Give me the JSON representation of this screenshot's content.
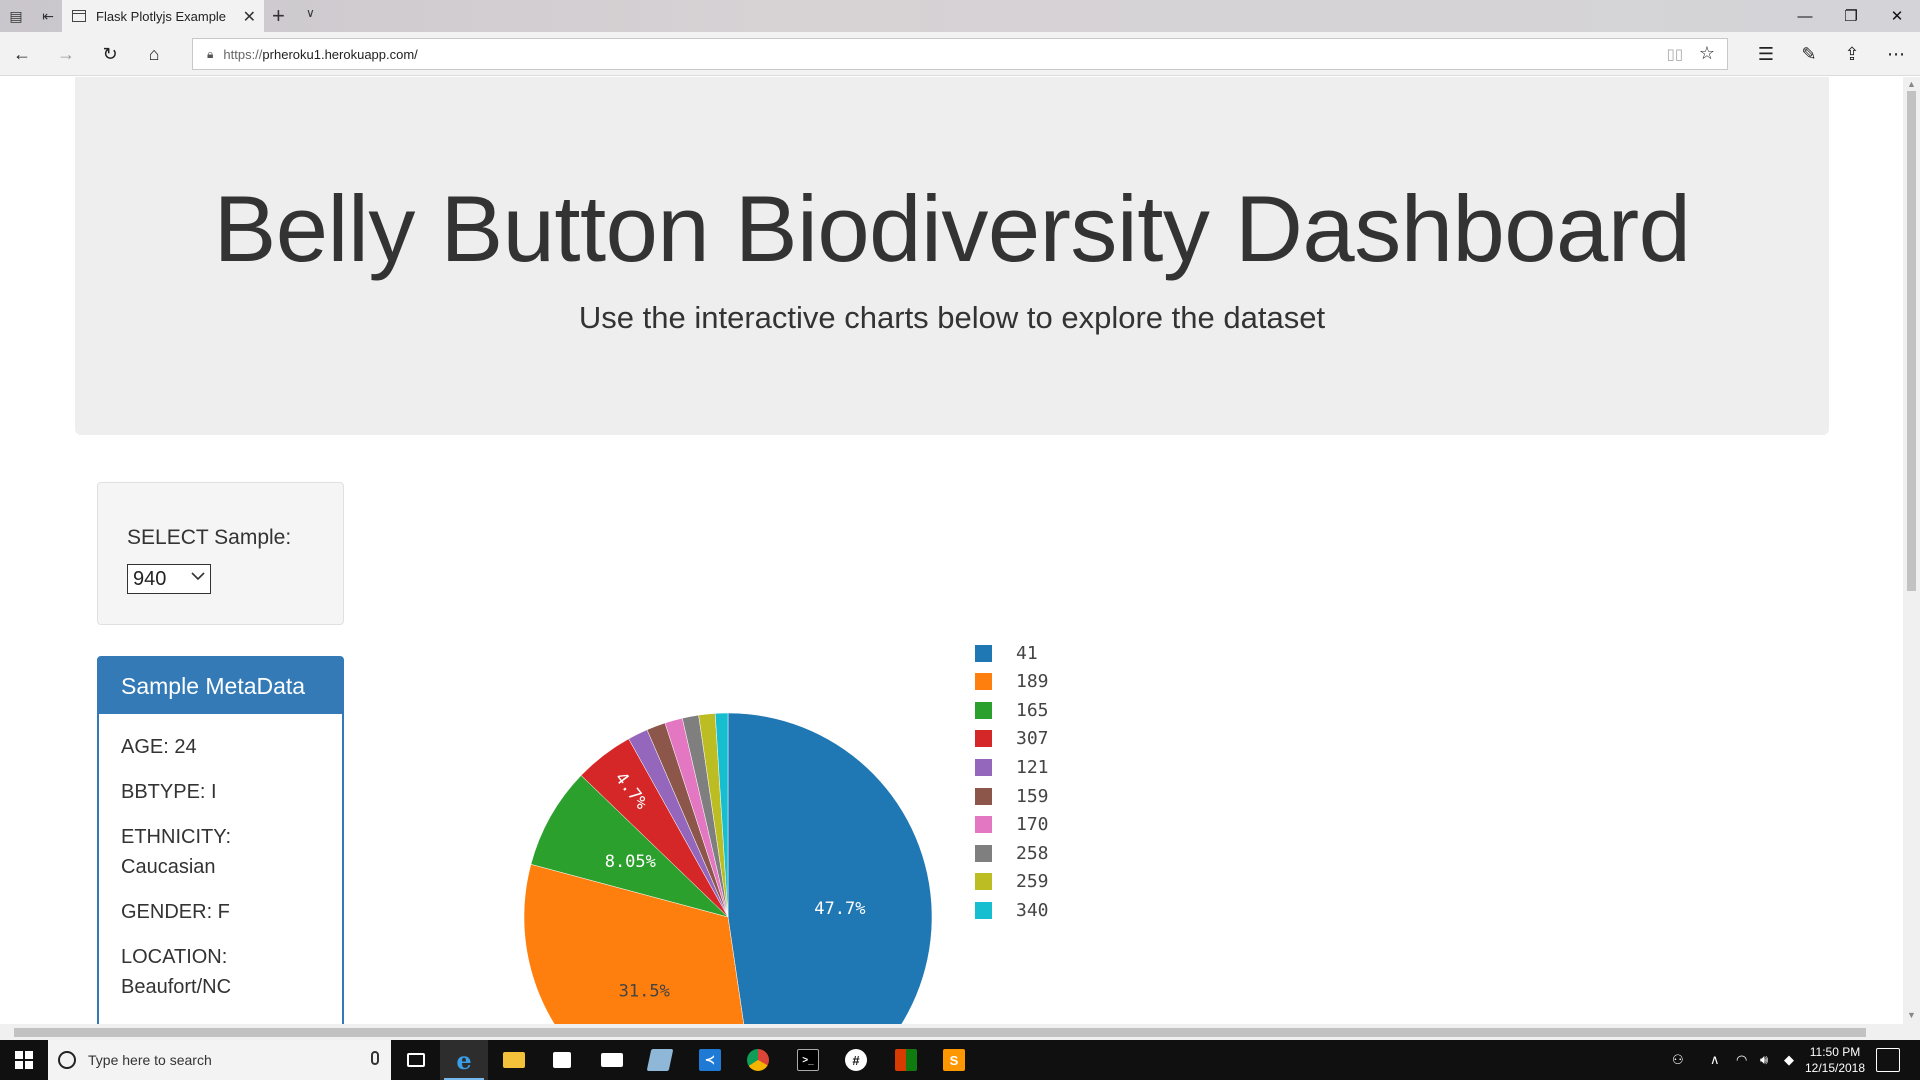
{
  "browser": {
    "tab_title": "Flask Plotlyjs Example",
    "url_protocol": "https://",
    "url_host": "prheroku1.herokuapp.com/",
    "close_glyph": "✕",
    "new_tab_glyph": "+",
    "tab_menu_glyph": "∨"
  },
  "window_controls": {
    "minimize": "—",
    "restore": "❐",
    "close": "✕"
  },
  "page": {
    "title": "Belly Button Biodiversity Dashboard",
    "subtitle": "Use the interactive charts below to explore the dataset",
    "select_label": "SELECT Sample:",
    "selected_sample": "940",
    "metadata_title": "Sample MetaData",
    "metadata": [
      {
        "label": "AGE: 24"
      },
      {
        "label": "BBTYPE: I"
      },
      {
        "label": "ETHNICITY: Caucasian"
      },
      {
        "label": "GENDER: F"
      },
      {
        "label": "LOCATION: Beaufort/NC"
      }
    ]
  },
  "chart_data": {
    "type": "pie",
    "labels": [
      "41",
      "189",
      "165",
      "307",
      "121",
      "159",
      "170",
      "258",
      "259",
      "340"
    ],
    "values": [
      47.7,
      31.5,
      8.05,
      4.7,
      1.6,
      1.5,
      1.4,
      1.3,
      1.3,
      1.0
    ],
    "shown_slice_labels": [
      "47.7%",
      "31.5%",
      "8.05%",
      "4.7%"
    ],
    "colors": [
      "#1f77b4",
      "#ff7f0e",
      "#2ca02c",
      "#d62728",
      "#9467bd",
      "#8c564b",
      "#e377c2",
      "#7f7f7f",
      "#bcbd22",
      "#17becf"
    ],
    "legend_position": "right"
  },
  "taskbar": {
    "search_placeholder": "Type here to search",
    "time": "11:50 PM",
    "date": "12/15/2018",
    "apps": [
      "task-view",
      "edge",
      "file-explorer",
      "store",
      "mail",
      "notepad",
      "vscode",
      "chrome",
      "terminal",
      "slack",
      "office",
      "sublime-text"
    ]
  }
}
